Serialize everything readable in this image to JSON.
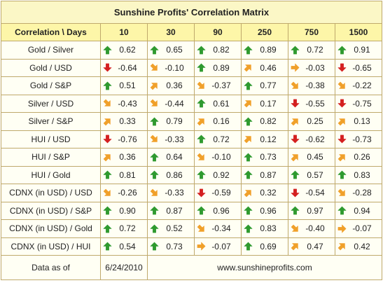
{
  "title": "Sunshine Profits' Correlation Matrix",
  "corner_label": "Correlation \\ Days",
  "columns": [
    "10",
    "30",
    "90",
    "250",
    "750",
    "1500"
  ],
  "arrow_colors": {
    "up": "#2f9a2f",
    "down": "#d42020",
    "flat": "#f0a02a"
  },
  "rows": [
    {
      "label": "Gold / Silver",
      "cells": [
        {
          "value": "0.62",
          "icon": "arrow-up-icon"
        },
        {
          "value": "0.65",
          "icon": "arrow-up-icon"
        },
        {
          "value": "0.82",
          "icon": "arrow-up-icon"
        },
        {
          "value": "0.89",
          "icon": "arrow-up-icon"
        },
        {
          "value": "0.72",
          "icon": "arrow-up-icon"
        },
        {
          "value": "0.91",
          "icon": "arrow-up-icon"
        }
      ]
    },
    {
      "label": "Gold / USD",
      "cells": [
        {
          "value": "-0.64",
          "icon": "arrow-down-icon"
        },
        {
          "value": "-0.10",
          "icon": "arrow-down-right-icon"
        },
        {
          "value": "0.89",
          "icon": "arrow-up-icon"
        },
        {
          "value": "0.46",
          "icon": "arrow-up-right-icon"
        },
        {
          "value": "-0.03",
          "icon": "arrow-right-icon"
        },
        {
          "value": "-0.65",
          "icon": "arrow-down-icon"
        }
      ]
    },
    {
      "label": "Gold / S&P",
      "cells": [
        {
          "value": "0.51",
          "icon": "arrow-up-icon"
        },
        {
          "value": "0.36",
          "icon": "arrow-up-right-icon"
        },
        {
          "value": "-0.37",
          "icon": "arrow-down-right-icon"
        },
        {
          "value": "0.77",
          "icon": "arrow-up-icon"
        },
        {
          "value": "-0.38",
          "icon": "arrow-down-right-icon"
        },
        {
          "value": "-0.22",
          "icon": "arrow-down-right-icon"
        }
      ]
    },
    {
      "label": "Silver / USD",
      "cells": [
        {
          "value": "-0.43",
          "icon": "arrow-down-right-icon"
        },
        {
          "value": "-0.44",
          "icon": "arrow-down-right-icon"
        },
        {
          "value": "0.61",
          "icon": "arrow-up-icon"
        },
        {
          "value": "0.17",
          "icon": "arrow-up-right-icon"
        },
        {
          "value": "-0.55",
          "icon": "arrow-down-icon"
        },
        {
          "value": "-0.75",
          "icon": "arrow-down-icon"
        }
      ]
    },
    {
      "label": "Silver / S&P",
      "cells": [
        {
          "value": "0.33",
          "icon": "arrow-up-right-icon"
        },
        {
          "value": "0.79",
          "icon": "arrow-up-icon"
        },
        {
          "value": "0.16",
          "icon": "arrow-up-right-icon"
        },
        {
          "value": "0.82",
          "icon": "arrow-up-icon"
        },
        {
          "value": "0.25",
          "icon": "arrow-up-right-icon"
        },
        {
          "value": "0.13",
          "icon": "arrow-up-right-icon"
        }
      ]
    },
    {
      "label": "HUI / USD",
      "cells": [
        {
          "value": "-0.76",
          "icon": "arrow-down-icon"
        },
        {
          "value": "-0.33",
          "icon": "arrow-down-right-icon"
        },
        {
          "value": "0.72",
          "icon": "arrow-up-icon"
        },
        {
          "value": "0.12",
          "icon": "arrow-up-right-icon"
        },
        {
          "value": "-0.62",
          "icon": "arrow-down-icon"
        },
        {
          "value": "-0.73",
          "icon": "arrow-down-icon"
        }
      ]
    },
    {
      "label": "HUI / S&P",
      "cells": [
        {
          "value": "0.36",
          "icon": "arrow-up-right-icon"
        },
        {
          "value": "0.64",
          "icon": "arrow-up-icon"
        },
        {
          "value": "-0.10",
          "icon": "arrow-down-right-icon"
        },
        {
          "value": "0.73",
          "icon": "arrow-up-icon"
        },
        {
          "value": "0.45",
          "icon": "arrow-up-right-icon"
        },
        {
          "value": "0.26",
          "icon": "arrow-up-right-icon"
        }
      ]
    },
    {
      "label": "HUI / Gold",
      "cells": [
        {
          "value": "0.81",
          "icon": "arrow-up-icon"
        },
        {
          "value": "0.86",
          "icon": "arrow-up-icon"
        },
        {
          "value": "0.92",
          "icon": "arrow-up-icon"
        },
        {
          "value": "0.87",
          "icon": "arrow-up-icon"
        },
        {
          "value": "0.57",
          "icon": "arrow-up-icon"
        },
        {
          "value": "0.83",
          "icon": "arrow-up-icon"
        }
      ]
    },
    {
      "label": "CDNX (in USD) / USD",
      "cells": [
        {
          "value": "-0.26",
          "icon": "arrow-down-right-icon"
        },
        {
          "value": "-0.33",
          "icon": "arrow-down-right-icon"
        },
        {
          "value": "-0.59",
          "icon": "arrow-down-icon"
        },
        {
          "value": "0.32",
          "icon": "arrow-up-right-icon"
        },
        {
          "value": "-0.54",
          "icon": "arrow-down-icon"
        },
        {
          "value": "-0.28",
          "icon": "arrow-down-right-icon"
        }
      ]
    },
    {
      "label": "CDNX (in USD) / S&P",
      "cells": [
        {
          "value": "0.90",
          "icon": "arrow-up-icon"
        },
        {
          "value": "0.87",
          "icon": "arrow-up-icon"
        },
        {
          "value": "0.96",
          "icon": "arrow-up-icon"
        },
        {
          "value": "0.96",
          "icon": "arrow-up-icon"
        },
        {
          "value": "0.97",
          "icon": "arrow-up-icon"
        },
        {
          "value": "0.94",
          "icon": "arrow-up-icon"
        }
      ]
    },
    {
      "label": "CDNX (in USD) / Gold",
      "cells": [
        {
          "value": "0.72",
          "icon": "arrow-up-icon"
        },
        {
          "value": "0.52",
          "icon": "arrow-up-icon"
        },
        {
          "value": "-0.34",
          "icon": "arrow-down-right-icon"
        },
        {
          "value": "0.83",
          "icon": "arrow-up-icon"
        },
        {
          "value": "-0.40",
          "icon": "arrow-down-right-icon"
        },
        {
          "value": "-0.07",
          "icon": "arrow-right-icon"
        }
      ]
    },
    {
      "label": "CDNX (in USD) / HUI",
      "cells": [
        {
          "value": "0.54",
          "icon": "arrow-up-icon"
        },
        {
          "value": "0.73",
          "icon": "arrow-up-icon"
        },
        {
          "value": "-0.07",
          "icon": "arrow-right-icon"
        },
        {
          "value": "0.69",
          "icon": "arrow-up-icon"
        },
        {
          "value": "0.47",
          "icon": "arrow-up-right-icon"
        },
        {
          "value": "0.42",
          "icon": "arrow-up-right-icon"
        }
      ]
    }
  ],
  "footer": {
    "data_label": "Data as of",
    "date": "6/24/2010",
    "website": "www.sunshineprofits.com"
  }
}
